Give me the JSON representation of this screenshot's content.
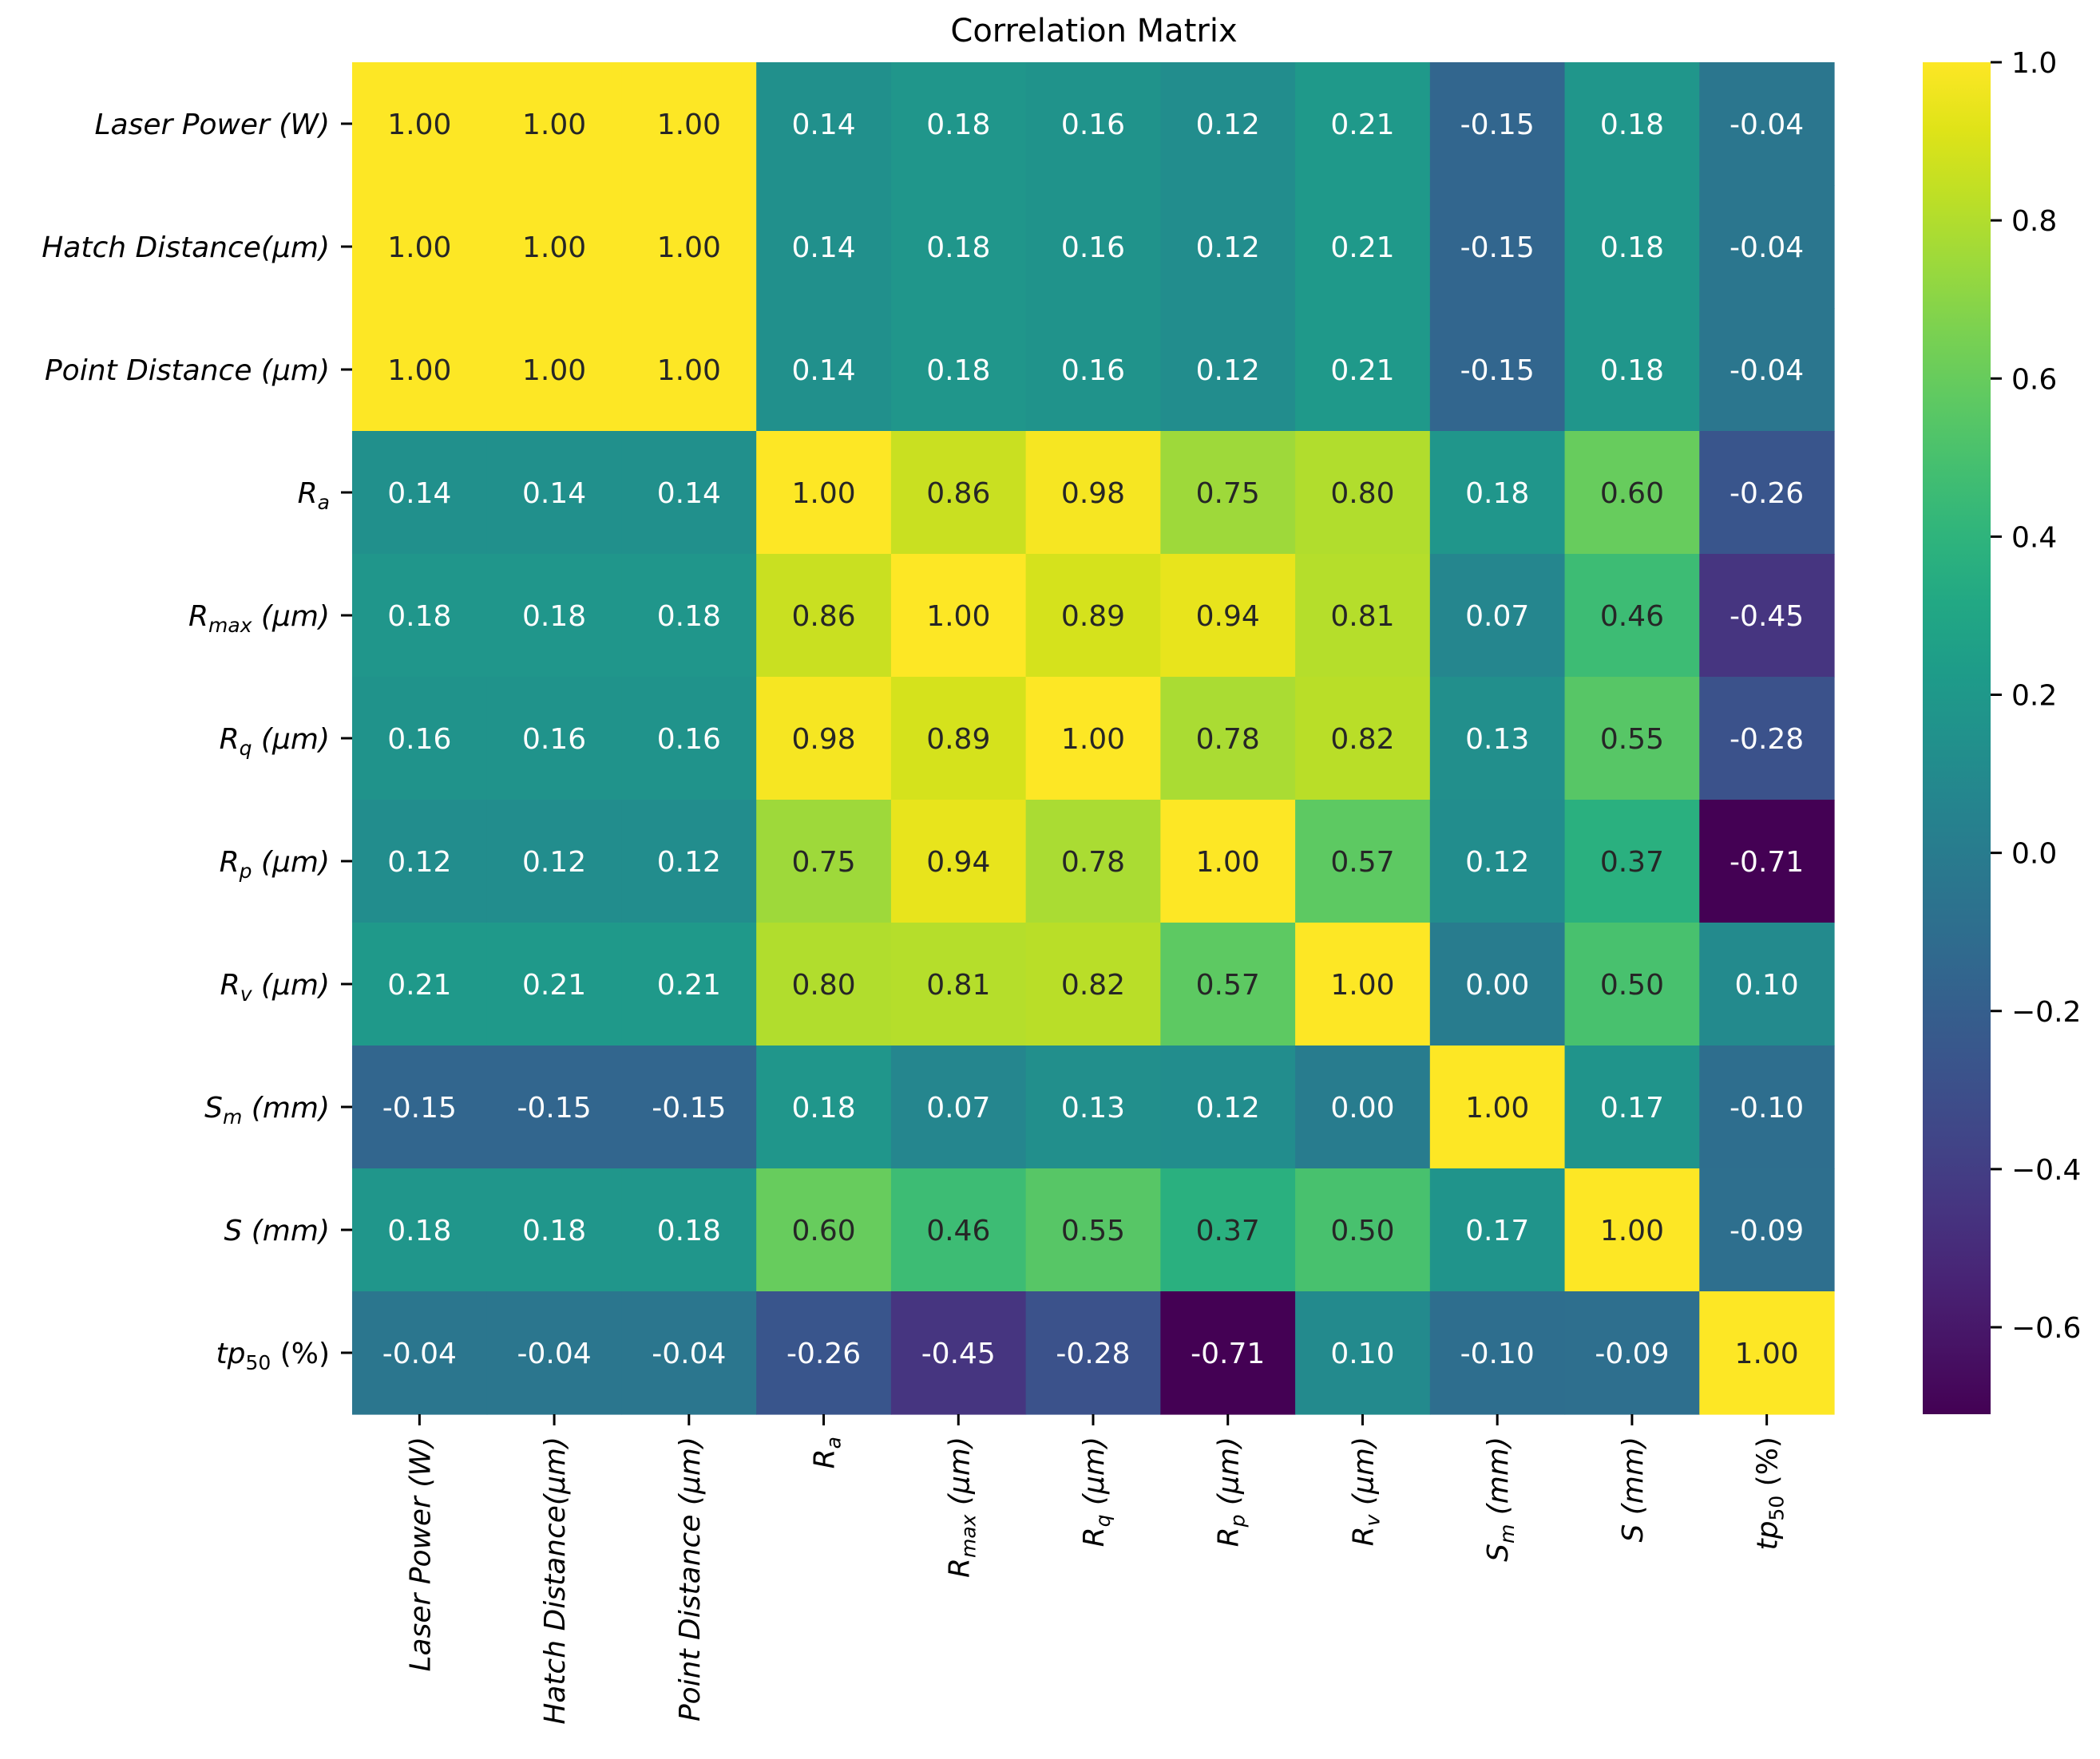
{
  "chart_data": {
    "type": "heatmap",
    "title": "Correlation Matrix",
    "colormap": "viridis",
    "value_format": "2 decimals",
    "labels": [
      {
        "parts": [
          {
            "t": "Laser Power (W)",
            "i": true
          }
        ]
      },
      {
        "parts": [
          {
            "t": "Hatch Distance(",
            "i": true
          },
          {
            "t": "μm",
            "i": true
          },
          {
            "t": ")",
            "i": true
          }
        ]
      },
      {
        "parts": [
          {
            "t": "Point Distance (",
            "i": true
          },
          {
            "t": "μm",
            "i": true
          },
          {
            "t": ")",
            "i": true
          }
        ]
      },
      {
        "parts": [
          {
            "t": "R",
            "i": true
          },
          {
            "t": "a",
            "i": true,
            "sub": true
          }
        ]
      },
      {
        "parts": [
          {
            "t": "R",
            "i": true
          },
          {
            "t": "max",
            "i": true,
            "sub": true
          },
          {
            "t": " (μm)",
            "i": true
          }
        ]
      },
      {
        "parts": [
          {
            "t": "R",
            "i": true
          },
          {
            "t": "q",
            "i": true,
            "sub": true
          },
          {
            "t": " (μm)",
            "i": true
          }
        ]
      },
      {
        "parts": [
          {
            "t": "R",
            "i": true
          },
          {
            "t": "p",
            "i": true,
            "sub": true
          },
          {
            "t": " (μm)",
            "i": true
          }
        ]
      },
      {
        "parts": [
          {
            "t": "R",
            "i": true
          },
          {
            "t": "v",
            "i": true,
            "sub": true
          },
          {
            "t": " (μm)",
            "i": true
          }
        ]
      },
      {
        "parts": [
          {
            "t": "S",
            "i": true
          },
          {
            "t": "m",
            "i": true,
            "sub": true
          },
          {
            "t": " (mm)",
            "i": true
          }
        ]
      },
      {
        "parts": [
          {
            "t": "S (mm)",
            "i": true
          }
        ]
      },
      {
        "parts": [
          {
            "t": "tp",
            "i": true
          },
          {
            "t": "50",
            "i": false,
            "sub": true
          },
          {
            "t": " (%)",
            "i": false
          }
        ]
      }
    ],
    "matrix": [
      [
        1.0,
        1.0,
        1.0,
        0.14,
        0.18,
        0.16,
        0.12,
        0.21,
        -0.15,
        0.18,
        -0.04
      ],
      [
        1.0,
        1.0,
        1.0,
        0.14,
        0.18,
        0.16,
        0.12,
        0.21,
        -0.15,
        0.18,
        -0.04
      ],
      [
        1.0,
        1.0,
        1.0,
        0.14,
        0.18,
        0.16,
        0.12,
        0.21,
        -0.15,
        0.18,
        -0.04
      ],
      [
        0.14,
        0.14,
        0.14,
        1.0,
        0.86,
        0.98,
        0.75,
        0.8,
        0.18,
        0.6,
        -0.26
      ],
      [
        0.18,
        0.18,
        0.18,
        0.86,
        1.0,
        0.89,
        0.94,
        0.81,
        0.07,
        0.46,
        -0.45
      ],
      [
        0.16,
        0.16,
        0.16,
        0.98,
        0.89,
        1.0,
        0.78,
        0.82,
        0.13,
        0.55,
        -0.28
      ],
      [
        0.12,
        0.12,
        0.12,
        0.75,
        0.94,
        0.78,
        1.0,
        0.57,
        0.12,
        0.37,
        -0.71
      ],
      [
        0.21,
        0.21,
        0.21,
        0.8,
        0.81,
        0.82,
        0.57,
        1.0,
        -0.0,
        0.5,
        0.1
      ],
      [
        -0.15,
        -0.15,
        -0.15,
        0.18,
        0.07,
        0.13,
        0.12,
        -0.0,
        1.0,
        0.17,
        -0.1
      ],
      [
        0.18,
        0.18,
        0.18,
        0.6,
        0.46,
        0.55,
        0.37,
        0.5,
        0.17,
        1.0,
        -0.09
      ],
      [
        -0.04,
        -0.04,
        -0.04,
        -0.26,
        -0.45,
        -0.28,
        -0.71,
        0.1,
        -0.1,
        -0.09,
        1.0
      ]
    ],
    "colorbar": {
      "vmin": -0.71,
      "vmax": 1.0,
      "ticks": [
        -0.6,
        -0.4,
        -0.2,
        0.0,
        0.2,
        0.4,
        0.6,
        0.8,
        1.0
      ],
      "tick_labels": [
        "−0.6",
        "−0.4",
        "−0.2",
        "0.0",
        "0.2",
        "0.4",
        "0.6",
        "0.8",
        "1.0"
      ]
    }
  }
}
